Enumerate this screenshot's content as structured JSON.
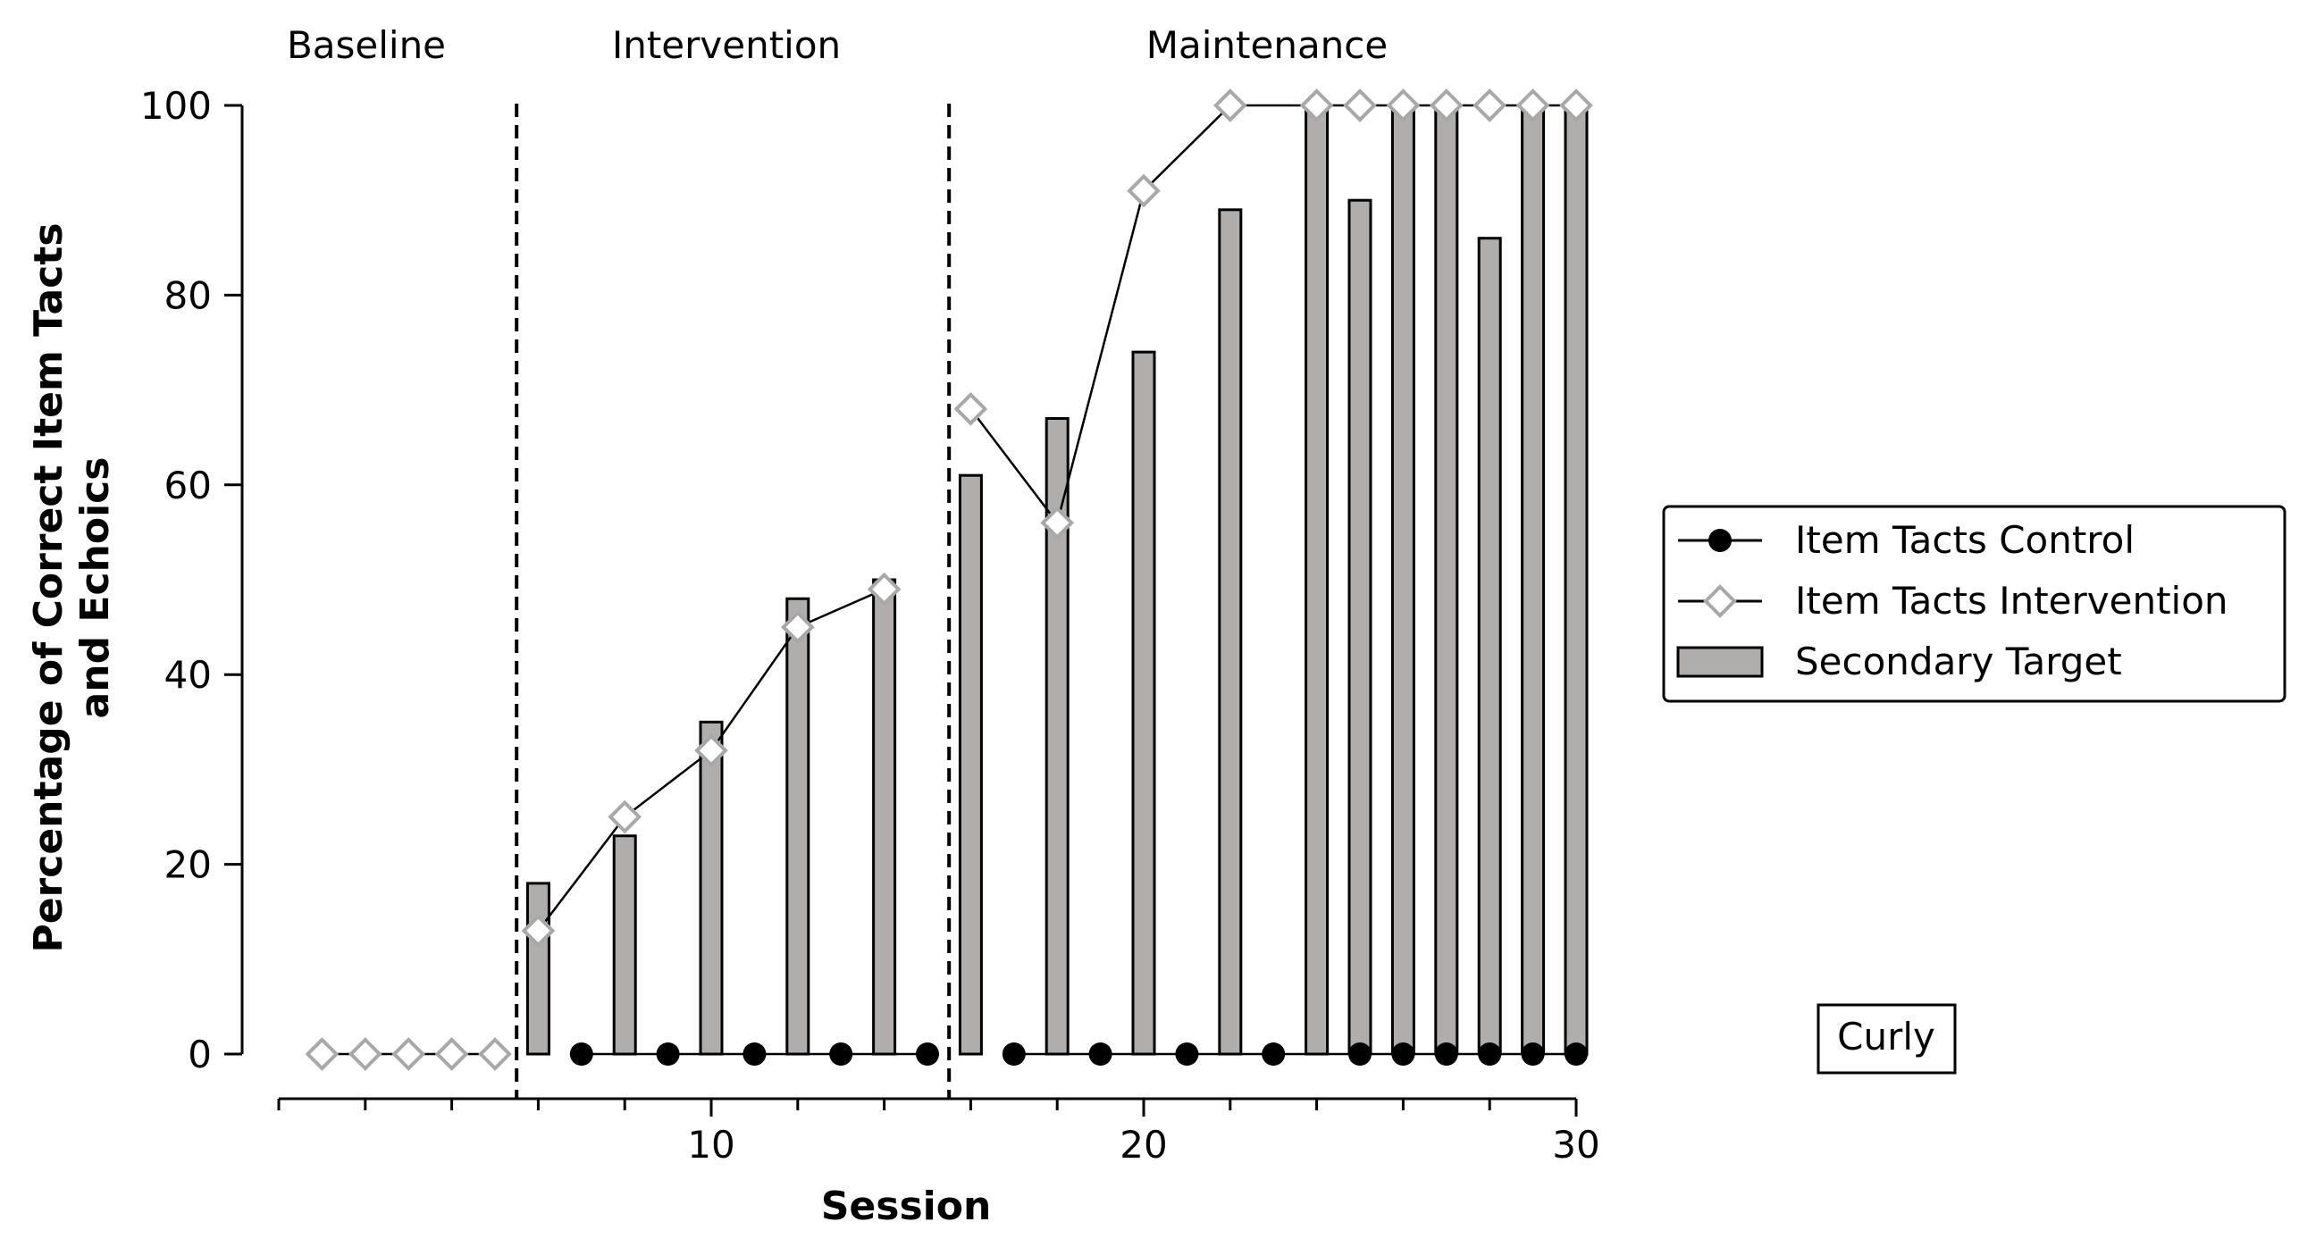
{
  "chart_data": {
    "type": "bar",
    "xlabel": "Session",
    "ylabel": [
      "Percentage of Correct Item Tacts",
      "and Echoics"
    ],
    "xlim": [
      0,
      30
    ],
    "ylim": [
      0,
      100
    ],
    "x_ticks": [
      10,
      20,
      30
    ],
    "x_minor_ticks": [
      0,
      2,
      4,
      6,
      8,
      10,
      12,
      14,
      16,
      18,
      20,
      22,
      24,
      26,
      28,
      30
    ],
    "y_ticks": [
      0,
      20,
      40,
      60,
      80,
      100
    ],
    "grid": false,
    "legend_position": "right",
    "phases": [
      {
        "label": "Baseline",
        "x_from": 0,
        "x_to": 5.5
      },
      {
        "label": "Intervention",
        "x_from": 5.5,
        "x_to": 15.5
      },
      {
        "label": "Maintenance",
        "x_from": 15.5,
        "x_to": 30
      }
    ],
    "phase_change_lines": [
      5.5,
      15.5
    ],
    "participant_label": "Curly",
    "series": [
      {
        "name": "Item Tacts Control",
        "kind": "line",
        "marker": "filled-circle",
        "color": "#000000",
        "points": [
          {
            "x": 7,
            "y": 0
          },
          {
            "x": 9,
            "y": 0
          },
          {
            "x": 11,
            "y": 0
          },
          {
            "x": 13,
            "y": 0
          },
          {
            "x": 15,
            "y": 0
          },
          {
            "x": 17,
            "y": 0
          },
          {
            "x": 19,
            "y": 0
          },
          {
            "x": 21,
            "y": 0
          },
          {
            "x": 23,
            "y": 0
          },
          {
            "x": 25,
            "y": 0
          },
          {
            "x": 26,
            "y": 0
          },
          {
            "x": 27,
            "y": 0
          },
          {
            "x": 28,
            "y": 0
          },
          {
            "x": 29,
            "y": 0
          },
          {
            "x": 30,
            "y": 0
          }
        ],
        "segments": [
          [
            7,
            15
          ],
          [
            17,
            30
          ]
        ]
      },
      {
        "name": "Item Tacts Intervention",
        "kind": "line",
        "marker": "open-diamond",
        "color": "#000000",
        "marker_edge_color": "#a8a8a8",
        "points": [
          {
            "x": 1,
            "y": 0
          },
          {
            "x": 2,
            "y": 0
          },
          {
            "x": 3,
            "y": 0
          },
          {
            "x": 4,
            "y": 0
          },
          {
            "x": 5,
            "y": 0
          },
          {
            "x": 6,
            "y": 13
          },
          {
            "x": 8,
            "y": 25
          },
          {
            "x": 10,
            "y": 32
          },
          {
            "x": 12,
            "y": 45
          },
          {
            "x": 14,
            "y": 49
          },
          {
            "x": 16,
            "y": 68
          },
          {
            "x": 18,
            "y": 56
          },
          {
            "x": 20,
            "y": 91
          },
          {
            "x": 22,
            "y": 100
          },
          {
            "x": 24,
            "y": 100
          },
          {
            "x": 25,
            "y": 100
          },
          {
            "x": 26,
            "y": 100
          },
          {
            "x": 27,
            "y": 100
          },
          {
            "x": 28,
            "y": 100
          },
          {
            "x": 29,
            "y": 100
          },
          {
            "x": 30,
            "y": 100
          }
        ],
        "segments": [
          [
            1,
            5
          ],
          [
            6,
            14
          ],
          [
            16,
            30
          ]
        ]
      },
      {
        "name": "Secondary Target",
        "kind": "bar",
        "color": "#b0adad",
        "points": [
          {
            "x": 6,
            "y": 18
          },
          {
            "x": 8,
            "y": 23
          },
          {
            "x": 10,
            "y": 35
          },
          {
            "x": 12,
            "y": 48
          },
          {
            "x": 14,
            "y": 50
          },
          {
            "x": 16,
            "y": 61
          },
          {
            "x": 18,
            "y": 67
          },
          {
            "x": 20,
            "y": 74
          },
          {
            "x": 22,
            "y": 89
          },
          {
            "x": 24,
            "y": 100
          },
          {
            "x": 25,
            "y": 90
          },
          {
            "x": 26,
            "y": 100
          },
          {
            "x": 27,
            "y": 100
          },
          {
            "x": 28,
            "y": 86
          },
          {
            "x": 29,
            "y": 100
          },
          {
            "x": 30,
            "y": 100
          }
        ]
      }
    ]
  }
}
